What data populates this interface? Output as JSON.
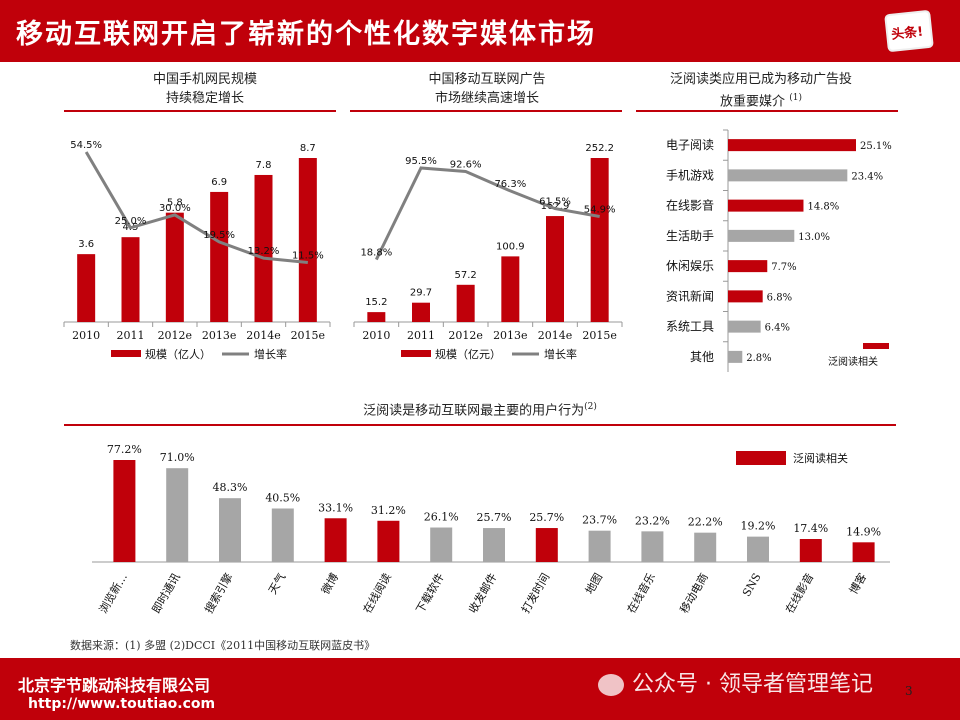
{
  "title": "移动互联网开启了崭新的个性化数字媒体市场",
  "logo_text": "头条!",
  "colors": {
    "red": "#c0000a",
    "gray": "#a6a6a6",
    "line": "#808080"
  },
  "chart1": {
    "title_line1": "中国手机网民规模",
    "title_line2": "持续稳定增长",
    "chart_data": {
      "type": "bar",
      "categories": [
        "2010",
        "2011",
        "2012e",
        "2013e",
        "2014e",
        "2015e"
      ],
      "values": [
        3.6,
        4.5,
        5.8,
        6.9,
        7.8,
        8.7
      ],
      "value_labels": [
        "3.6",
        "4.5",
        "5.8",
        "6.9",
        "7.8",
        "8.7"
      ],
      "growth": [
        54.5,
        25.0,
        30.0,
        19.5,
        13.2,
        11.5
      ],
      "growth_labels": [
        "54.5%",
        "25.0%",
        "30.0%",
        "19.5%",
        "13.2%",
        "11.5%"
      ],
      "legend_bar": "规模（亿人）",
      "legend_line": "增长率"
    }
  },
  "chart2": {
    "title_line1": "中国移动互联网广告",
    "title_line2": "市场继续高速增长",
    "chart_data": {
      "type": "bar",
      "categories": [
        "2010",
        "2011",
        "2012e",
        "2013e",
        "2014e",
        "2015e"
      ],
      "values": [
        15.2,
        29.7,
        57.2,
        100.9,
        162.9,
        252.2
      ],
      "value_labels": [
        "15.2",
        "29.7",
        "57.2",
        "100.9",
        "162.9",
        "252.2"
      ],
      "growth": [
        18.8,
        95.5,
        92.6,
        76.3,
        61.5,
        54.9
      ],
      "growth_labels": [
        "18.8%",
        "95.5%",
        "92.6%",
        "76.3%",
        "61.5%",
        "54.9%"
      ],
      "legend_bar": "规模（亿元）",
      "legend_line": "增长率"
    }
  },
  "chart3": {
    "title_line1": "泛阅读类应用已成为移动广告投",
    "title_line2": "放重要媒介",
    "title_note": "(1)",
    "legend": "泛阅读相关",
    "chart_data": {
      "type": "bar",
      "orientation": "horizontal",
      "categories": [
        "电子阅读",
        "手机游戏",
        "在线影音",
        "生活助手",
        "休闲娱乐",
        "资讯新闻",
        "系统工具",
        "其他"
      ],
      "values": [
        25.1,
        23.4,
        14.8,
        13.0,
        7.7,
        6.8,
        6.4,
        2.8
      ],
      "value_labels": [
        "25.1%",
        "23.4%",
        "14.8%",
        "13.0%",
        "7.7%",
        "6.8%",
        "6.4%",
        "2.8%"
      ],
      "highlight": [
        true,
        false,
        true,
        false,
        true,
        true,
        false,
        false
      ]
    }
  },
  "chart4": {
    "title": "泛阅读是移动互联网最主要的用户行为",
    "title_note": "(2)",
    "legend": "泛阅读相关",
    "chart_data": {
      "type": "bar",
      "categories": [
        "浏览新…",
        "即时通讯",
        "搜索引擎",
        "天气",
        "微博",
        "在线阅读",
        "下载软件",
        "收发邮件",
        "打发时间",
        "地图",
        "在线音乐",
        "移动电商",
        "SNS",
        "在线影音",
        "博客"
      ],
      "values": [
        77.2,
        71.0,
        48.3,
        40.5,
        33.1,
        31.2,
        26.1,
        25.7,
        25.7,
        23.7,
        23.2,
        22.2,
        19.2,
        17.4,
        14.9
      ],
      "value_labels": [
        "77.2%",
        "71.0%",
        "48.3%",
        "40.5%",
        "33.1%",
        "31.2%",
        "26.1%",
        "25.7%",
        "25.7%",
        "23.7%",
        "23.2%",
        "22.2%",
        "19.2%",
        "17.4%",
        "14.9%"
      ],
      "highlight": [
        true,
        false,
        false,
        false,
        true,
        true,
        false,
        false,
        true,
        false,
        false,
        false,
        false,
        true,
        true
      ]
    }
  },
  "source": "数据来源：(1) 多盟  (2)DCCI《2011中国移动互联网蓝皮书》",
  "footer": {
    "company": "北京字节跳动科技有限公司",
    "url": "http://www.toutiao.com",
    "watermark": "公众号 · 领导者管理笔记",
    "page": "3"
  }
}
